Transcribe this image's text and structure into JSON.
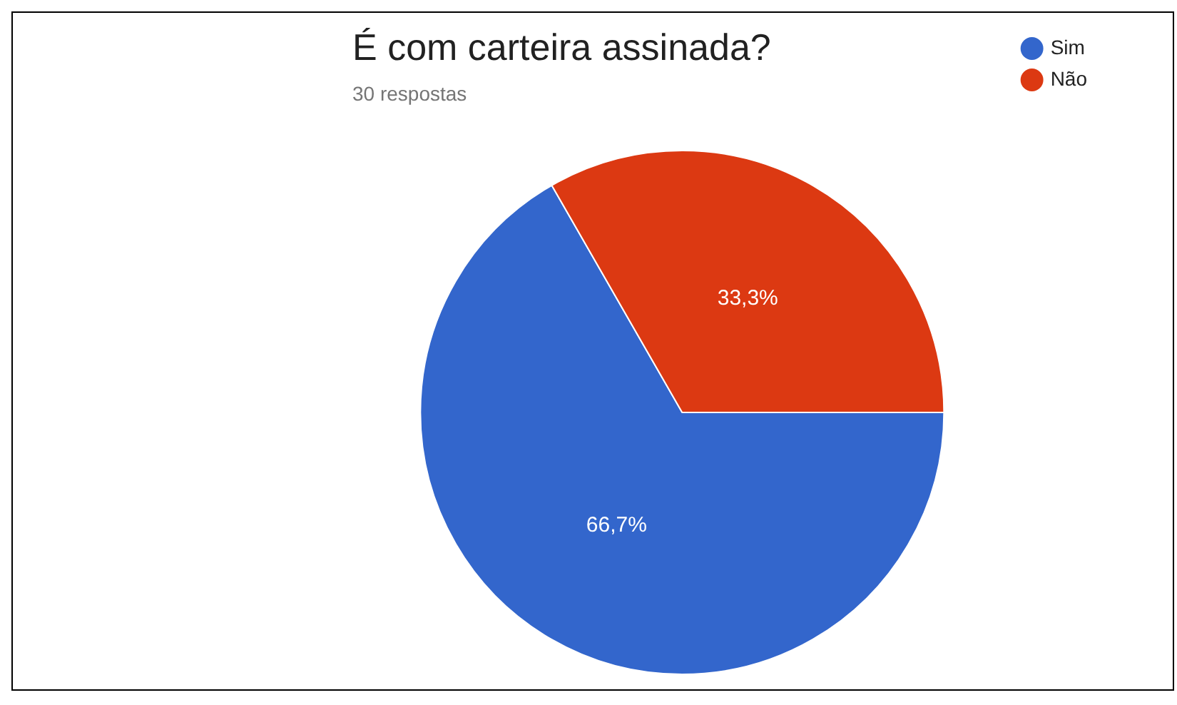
{
  "chart_data": {
    "type": "pie",
    "title": "É com carteira assinada?",
    "subtitle": "30 respostas",
    "categories": [
      "Sim",
      "Não"
    ],
    "values": [
      66.7,
      33.3
    ],
    "colors": [
      "#3366cc",
      "#dc3912"
    ],
    "value_labels": [
      "66,7%",
      "33,3%"
    ],
    "legend": "top right"
  }
}
